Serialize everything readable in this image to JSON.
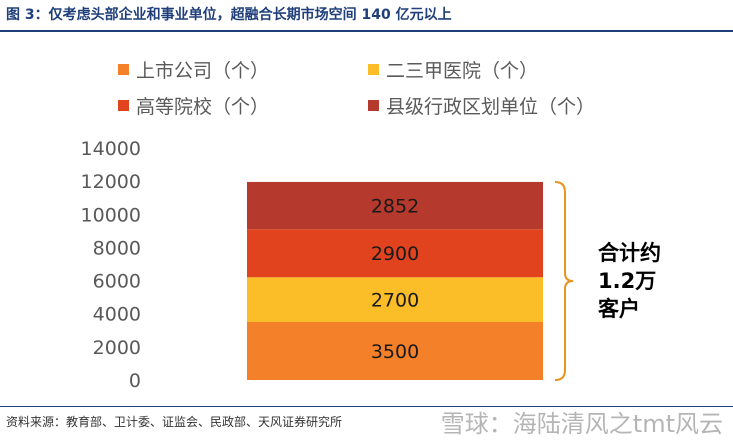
{
  "figure": {
    "title": "图 3：仅考虑头部企业和事业单位，超融合长期市场空间 140 亿元以上",
    "source": "资料来源：教育部、卫计委、证监会、民政部、天风证券研究所",
    "watermark": "雪球：海陆清风之tmt风云"
  },
  "chart_data": {
    "type": "bar",
    "stacked": true,
    "categories": [
      ""
    ],
    "series": [
      {
        "name": "上市公司（个）",
        "values": [
          3500
        ],
        "color": "#f4812a"
      },
      {
        "name": "二三甲医院（个）",
        "values": [
          2700
        ],
        "color": "#fbbd28"
      },
      {
        "name": "高等院校（个）",
        "values": [
          2900
        ],
        "color": "#e2431f"
      },
      {
        "name": "县级行政区划单位（个）",
        "values": [
          2852
        ],
        "color": "#b5392c"
      }
    ],
    "ylim": [
      0,
      14000
    ],
    "yticks": [
      "0",
      "2000",
      "4000",
      "6000",
      "8000",
      "10000",
      "12000",
      "14000"
    ],
    "legend_position": "top",
    "annotation": "合计约 1.2万 客户",
    "xlabel": "",
    "ylabel": ""
  }
}
